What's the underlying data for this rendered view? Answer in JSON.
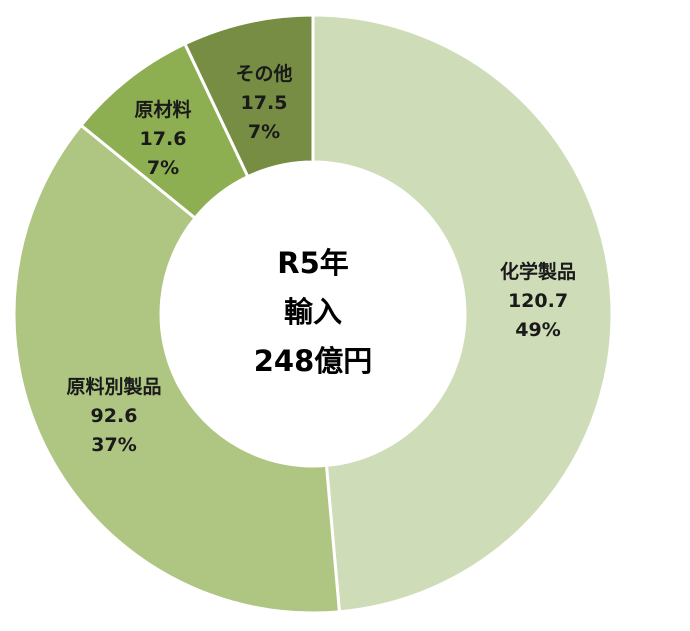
{
  "chart_data": {
    "type": "pie",
    "donut": true,
    "center_label": [
      "R5年",
      "輸入",
      "248億円"
    ],
    "series": [
      {
        "name": "化学製品",
        "value": 120.7,
        "percent": "49%",
        "color": "#cfdcb8"
      },
      {
        "name": "原料別製品",
        "value": 92.6,
        "percent": "37%",
        "color": "#afc582"
      },
      {
        "name": "原材料",
        "value": 17.6,
        "percent": "7%",
        "color": "#8eae52"
      },
      {
        "name": "その他",
        "value": 17.5,
        "percent": "7%",
        "color": "#768d43"
      }
    ]
  }
}
